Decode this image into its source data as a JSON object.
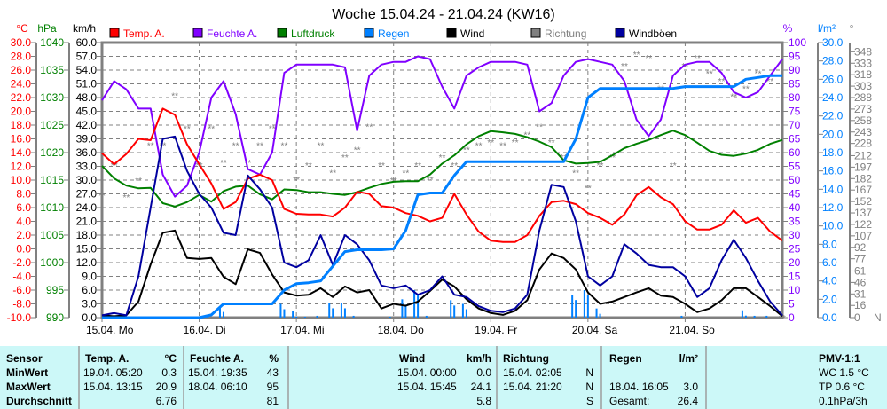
{
  "chart_data": {
    "type": "line",
    "title": "Woche 15.04.24 - 21.04.24 (KW16)",
    "legend_placement": "top",
    "grid": true,
    "legend": [
      {
        "name": "Temp. A.",
        "color": "#ff0000"
      },
      {
        "name": "Feuchte A.",
        "color": "#8000ff"
      },
      {
        "name": "Luftdruck",
        "color": "#008000"
      },
      {
        "name": "Regen",
        "color": "#0080ff"
      },
      {
        "name": "Wind",
        "color": "#000000"
      },
      {
        "name": "Richtung",
        "color": "#808080"
      },
      {
        "name": "Windböen",
        "color": "#0000a0"
      }
    ],
    "axes": {
      "temp": {
        "unit": "°C",
        "range": [
          -10,
          30
        ],
        "color": "#ff0000",
        "ticks": [
          "30.0",
          "28.0",
          "26.0",
          "24.0",
          "22.0",
          "20.0",
          "18.0",
          "16.0",
          "14.0",
          "12.0",
          "10.0",
          "8.0",
          "6.0",
          "4.0",
          "2.0",
          "0.0",
          "-2.0",
          "-4.0",
          "-6.0",
          "-8.0",
          "-10.0"
        ]
      },
      "pressure": {
        "unit": "hPa",
        "range": [
          990,
          1040
        ],
        "color": "#008000",
        "ticks": [
          "1040",
          "1035",
          "1030",
          "1025",
          "1020",
          "1015",
          "1010",
          "1005",
          "1000",
          "995",
          "990"
        ]
      },
      "wind": {
        "unit": "km/h",
        "range": [
          0,
          60
        ],
        "color": "#000000",
        "ticks": [
          "60.0",
          "57.0",
          "54.0",
          "51.0",
          "48.0",
          "45.0",
          "42.0",
          "39.0",
          "36.0",
          "33.0",
          "30.0",
          "27.0",
          "24.0",
          "21.0",
          "18.0",
          "15.0",
          "12.0",
          "9.0",
          "6.0",
          "3.0",
          "0.0"
        ]
      },
      "humidity": {
        "unit": "%",
        "range": [
          0,
          100
        ],
        "color": "#8000ff",
        "ticks": [
          "100",
          "95",
          "90",
          "85",
          "80",
          "75",
          "70",
          "65",
          "60",
          "55",
          "50",
          "45",
          "40",
          "35",
          "30",
          "25",
          "20",
          "15",
          "10",
          "5",
          "0"
        ]
      },
      "rain": {
        "unit": "l/m²",
        "range": [
          0,
          30
        ],
        "color": "#0080ff",
        "ticks": [
          "30.0",
          "28.0",
          "26.0",
          "24.0",
          "22.0",
          "20.0",
          "18.0",
          "16.0",
          "14.0",
          "12.0",
          "10.0",
          "8.0",
          "6.0",
          "4.0",
          "2.0",
          "0.0"
        ]
      },
      "direction": {
        "unit": "°",
        "range": [
          0,
          360
        ],
        "color": "#808080",
        "end_label": "N",
        "ticks": [
          "348",
          "333",
          "318",
          "303",
          "288",
          "273",
          "258",
          "243",
          "228",
          "212",
          "197",
          "182",
          "167",
          "152",
          "137",
          "122",
          "107",
          "92",
          "77",
          "61",
          "46",
          "31",
          "16",
          "0"
        ]
      }
    },
    "x_range": [
      "15.04. 00:00",
      "22.04. 00:00"
    ],
    "x_tick_labels": [
      "15.04.  Mo",
      "16.04.  Di",
      "17.04.  Mi",
      "18.04.  Do",
      "19.04.  Fr",
      "20.04.  Sa",
      "21.04.  So"
    ],
    "x": [
      "15.04. 00:00",
      "15.04. 03:00",
      "15.04. 06:00",
      "15.04. 09:00",
      "15.04. 12:00",
      "15.04. 15:00",
      "15.04. 18:00",
      "15.04. 21:00",
      "16.04. 00:00",
      "16.04. 03:00",
      "16.04. 06:00",
      "16.04. 09:00",
      "16.04. 12:00",
      "16.04. 15:00",
      "16.04. 18:00",
      "16.04. 21:00",
      "17.04. 00:00",
      "17.04. 03:00",
      "17.04. 06:00",
      "17.04. 09:00",
      "17.04. 12:00",
      "17.04. 15:00",
      "17.04. 18:00",
      "17.04. 21:00",
      "18.04. 00:00",
      "18.04. 03:00",
      "18.04. 06:00",
      "18.04. 09:00",
      "18.04. 12:00",
      "18.04. 15:00",
      "18.04. 18:00",
      "18.04. 21:00",
      "19.04. 00:00",
      "19.04. 03:00",
      "19.04. 06:00",
      "19.04. 09:00",
      "19.04. 12:00",
      "19.04. 15:00",
      "19.04. 18:00",
      "19.04. 21:00",
      "20.04. 00:00",
      "20.04. 03:00",
      "20.04. 06:00",
      "20.04. 09:00",
      "20.04. 12:00",
      "20.04. 15:00",
      "20.04. 18:00",
      "20.04. 21:00",
      "21.04. 00:00",
      "21.04. 03:00",
      "21.04. 06:00",
      "21.04. 09:00",
      "21.04. 12:00",
      "21.04. 15:00",
      "21.04. 18:00",
      "21.04. 21:00",
      "22.04. 00:00"
    ],
    "series": [
      {
        "name": "Temp. A.",
        "axis": "temp",
        "values": [
          13.9,
          12.3,
          13.8,
          16.0,
          15.8,
          20.4,
          19.5,
          15.2,
          12.3,
          9.5,
          5.8,
          6.8,
          10.2,
          10.8,
          10.0,
          5.8,
          5.1,
          5.0,
          5.0,
          4.7,
          6.0,
          8.3,
          8.0,
          6.2,
          6.0,
          5.2,
          4.8,
          4.0,
          4.5,
          8.0,
          5.0,
          2.5,
          1.2,
          1.0,
          1.0,
          2.0,
          4.8,
          6.8,
          7.0,
          6.5,
          5.2,
          4.5,
          3.5,
          5.0,
          7.8,
          9.0,
          7.5,
          6.5,
          4.0,
          2.8,
          2.8,
          3.5,
          5.6,
          3.8,
          4.5,
          2.5,
          1.2
        ]
      },
      {
        "name": "Feuchte A.",
        "axis": "humidity",
        "values": [
          79,
          86,
          83,
          76,
          76,
          52,
          44,
          48,
          60,
          80,
          86,
          74,
          54,
          52,
          60,
          89,
          92,
          92,
          92,
          92,
          91,
          68,
          88,
          92,
          93,
          93,
          95,
          94,
          84,
          76,
          88,
          91,
          93,
          93,
          93,
          92,
          75,
          78,
          88,
          93,
          94,
          93,
          92,
          86,
          72,
          66,
          72,
          88,
          92,
          93,
          93,
          89,
          82,
          80,
          82,
          88,
          94
        ]
      },
      {
        "name": "Luftdruck",
        "axis": "pressure",
        "values": [
          1017.6,
          1015.3,
          1014.0,
          1013.5,
          1013.6,
          1010.8,
          1010.2,
          1011.0,
          1012.3,
          1011.1,
          1013.0,
          1013.8,
          1014.0,
          1012.4,
          1011.5,
          1013.3,
          1013.2,
          1012.8,
          1012.8,
          1012.5,
          1012.3,
          1012.8,
          1013.6,
          1014.3,
          1014.7,
          1014.8,
          1014.8,
          1016.0,
          1018.0,
          1019.5,
          1021.5,
          1023.0,
          1023.9,
          1023.7,
          1023.4,
          1022.8,
          1022.0,
          1021.0,
          1018.6,
          1018.0,
          1018.1,
          1018.3,
          1019.5,
          1020.8,
          1021.6,
          1022.3,
          1023.2,
          1024.0,
          1023.2,
          1021.8,
          1020.3,
          1019.6,
          1019.4,
          1019.8,
          1020.5,
          1021.6,
          1022.3
        ]
      },
      {
        "name": "Regen",
        "axis": "rain",
        "values": [
          0,
          0,
          0,
          0,
          0,
          0,
          0,
          0,
          0,
          0.3,
          1.5,
          1.5,
          1.5,
          1.5,
          1.5,
          3.0,
          3.7,
          3.8,
          4.0,
          5.6,
          7.2,
          7.4,
          7.4,
          7.4,
          7.5,
          9.5,
          13.4,
          13.6,
          13.6,
          15.5,
          17.0,
          17.0,
          17.0,
          17.0,
          17.0,
          17.0,
          17.0,
          17.0,
          17.0,
          19.5,
          24.0,
          25.0,
          25.0,
          25.0,
          25.0,
          25.0,
          25.0,
          25.0,
          25.2,
          25.2,
          25.2,
          25.2,
          25.2,
          26.0,
          26.2,
          26.4,
          26.4
        ]
      },
      {
        "name": "Wind",
        "axis": "wind",
        "values": [
          0.5,
          0.3,
          0.5,
          3.5,
          11.6,
          18.5,
          19.0,
          13.0,
          12.8,
          13.0,
          8.9,
          7.3,
          14.9,
          14.1,
          9.4,
          5.5,
          4.8,
          5.0,
          6.4,
          4.5,
          6.8,
          5.5,
          6.0,
          2.0,
          3.0,
          2.6,
          3.5,
          5.8,
          8.3,
          6.8,
          4.0,
          2.0,
          1.0,
          0.6,
          1.5,
          3.8,
          10.5,
          14.0,
          13.0,
          10.5,
          5.5,
          3.0,
          3.5,
          4.5,
          5.5,
          6.4,
          4.8,
          4.5,
          3.0,
          1.2,
          2.0,
          3.8,
          6.4,
          6.4,
          4.5,
          2.5,
          0.3
        ]
      },
      {
        "name": "Richtung",
        "axis": "direction",
        "values": [
          160,
          200,
          158,
          180,
          226,
          226,
          291,
          248,
          200,
          248,
          203,
          226,
          203,
          226,
          248,
          226,
          181,
          200,
          226,
          190,
          210,
          220,
          250,
          200,
          180,
          190,
          200,
          181,
          210,
          200,
          220,
          226,
          230,
          226,
          230,
          240,
          250,
          230,
          210,
          190,
          170,
          200,
          210,
          330,
          345,
          340,
          300,
          200,
          330,
          340,
          320,
          310,
          290,
          300,
          320,
          310,
          0
        ]
      },
      {
        "name": "Windböen",
        "axis": "wind",
        "values": [
          0.5,
          1.0,
          0.5,
          9.0,
          24.0,
          39.0,
          39.5,
          32.0,
          27.0,
          24.0,
          18.5,
          18.0,
          31.0,
          28.0,
          24.0,
          12.0,
          11.0,
          12.5,
          18.0,
          11.5,
          18.0,
          16.0,
          12.5,
          7.0,
          6.4,
          7.0,
          5.0,
          6.0,
          9.0,
          5.0,
          4.5,
          2.5,
          1.5,
          1.2,
          2.0,
          5.0,
          19.0,
          29.0,
          28.5,
          21.0,
          9.0,
          7.0,
          9.0,
          16.0,
          14.0,
          11.5,
          11.0,
          11.0,
          9.0,
          4.5,
          6.4,
          12.5,
          17.0,
          13.0,
          8.0,
          3.5,
          0.5
        ]
      }
    ]
  },
  "stats": {
    "sensor": {
      "header": "Sensor",
      "rows": [
        "MinWert",
        "MaxWert",
        "Durchschnitt"
      ]
    },
    "temp": {
      "header": "Temp. A.",
      "unit": "°C",
      "min_time": "19.04.  05:20",
      "min": "0.3",
      "max_time": "15.04.  13:15",
      "max": "20.9",
      "avg": "6.76"
    },
    "humidity": {
      "header": "Feuchte A.",
      "unit": "%",
      "min_time": "15.04.  19:35",
      "min": "43",
      "max_time": "18.04.  06:10",
      "max": "95",
      "avg": "81"
    },
    "wind": {
      "header": "Wind",
      "unit": "km/h",
      "min_time": "15.04.  00:00",
      "min": "0.0",
      "max_time": "15.04.  15:45",
      "max": "24.1",
      "avg": "5.8"
    },
    "direction": {
      "header": "Richtung",
      "min_time": "15.04.  02:05",
      "min": "N",
      "max_time": "15.04.  21:20",
      "max": "N",
      "avg": "S"
    },
    "rain": {
      "header": "Regen",
      "unit": "l/m²",
      "max_time": "18.04.  16:05",
      "max": "3.0",
      "total_label": "Gesamt:",
      "total": "26.4"
    },
    "pmv": {
      "header": "PMV-1:1",
      "wc": "WC 1.5 °C",
      "tp": "TP 0.6 °C",
      "trend": "0.1hPa/3h"
    }
  }
}
